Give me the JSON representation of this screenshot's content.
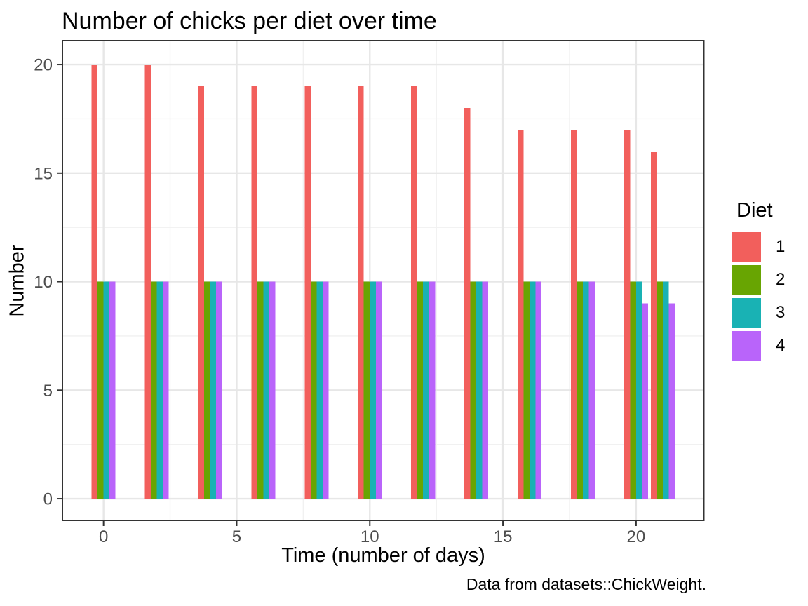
{
  "chart_data": {
    "type": "bar",
    "title": "Number of chicks per diet over time",
    "xlabel": "Time (number of days)",
    "ylabel": "Number",
    "caption": "Data from datasets::ChickWeight.",
    "legend_title": "Diet",
    "legend_position": "right",
    "grid": true,
    "x": [
      0,
      2,
      4,
      6,
      8,
      10,
      12,
      14,
      16,
      18,
      20,
      21
    ],
    "series": [
      {
        "name": "1",
        "color": "#F25F5C",
        "values": [
          20,
          20,
          19,
          19,
          19,
          19,
          19,
          18,
          17,
          17,
          17,
          16
        ]
      },
      {
        "name": "2",
        "color": "#68A502",
        "values": [
          10,
          10,
          10,
          10,
          10,
          10,
          10,
          10,
          10,
          10,
          10,
          10
        ]
      },
      {
        "name": "3",
        "color": "#19B2B4",
        "values": [
          10,
          10,
          10,
          10,
          10,
          10,
          10,
          10,
          10,
          10,
          10,
          10
        ]
      },
      {
        "name": "4",
        "color": "#B964FA",
        "values": [
          10,
          10,
          10,
          10,
          10,
          10,
          10,
          10,
          10,
          10,
          9,
          9
        ]
      }
    ],
    "x_ticks": [
      0,
      5,
      10,
      15,
      20
    ],
    "y_ticks": [
      0,
      5,
      10,
      15,
      20
    ],
    "x_minor": [
      2.5,
      7.5,
      12.5,
      17.5
    ],
    "y_minor": [
      2.5,
      7.5,
      12.5,
      17.5
    ],
    "xlim": [
      -1.545,
      22.545
    ],
    "ylim": [
      -1,
      21.1
    ],
    "bar_width": 0.225,
    "colors": {
      "grid_major": "#E7E7E7",
      "grid_minor": "#F1F1F1",
      "panel_border": "#333333",
      "tick_mark": "#333333",
      "axis_text": "#4D4D4D",
      "title_text": "#000000"
    }
  }
}
